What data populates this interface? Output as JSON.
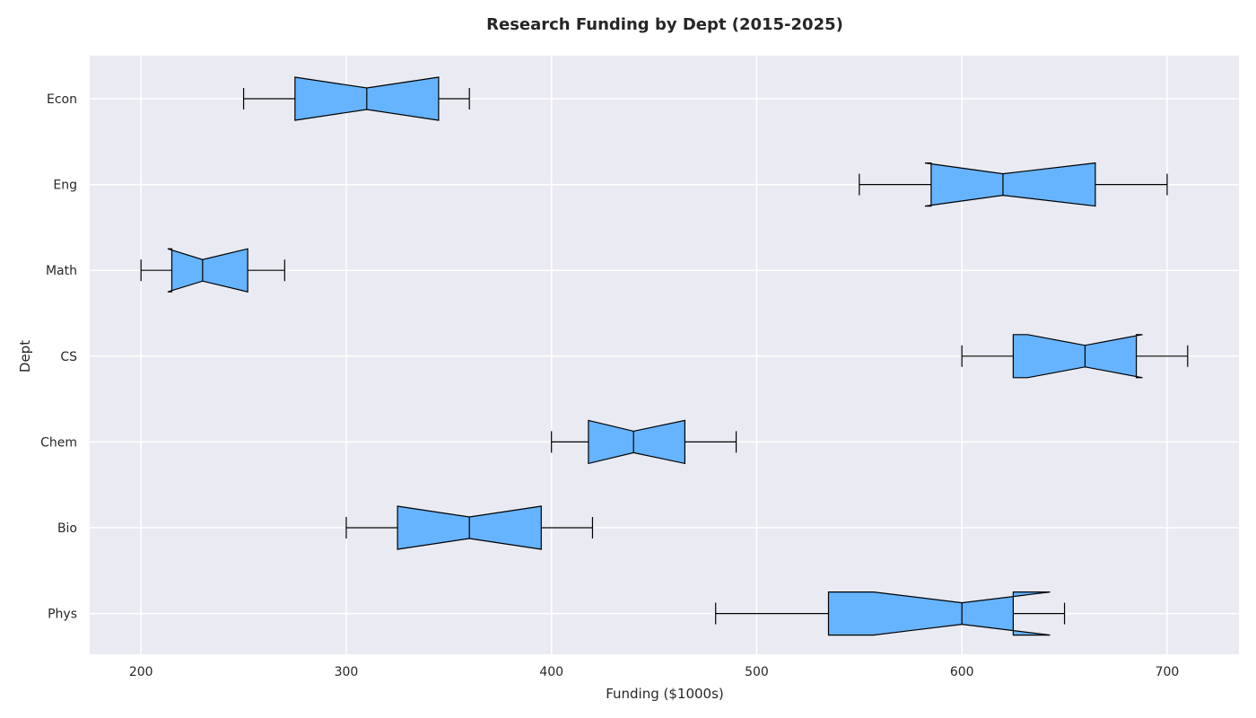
{
  "chart_data": {
    "type": "boxplot",
    "orientation": "horizontal",
    "notched": true,
    "title": "Research Funding by Dept (2015-2025)",
    "xlabel": "Funding ($1000s)",
    "ylabel": "Dept",
    "xlim": [
      175,
      735
    ],
    "xticks": [
      200,
      300,
      400,
      500,
      600,
      700
    ],
    "grid": true,
    "colors": {
      "box_fill": "#66b3ff",
      "box_edge": "#000000",
      "plot_bg": "#eaeaf2",
      "grid": "#ffffff"
    },
    "categories": [
      "Phys",
      "Bio",
      "Chem",
      "CS",
      "Math",
      "Eng",
      "Econ"
    ],
    "boxes": [
      {
        "label": "Phys",
        "whisker_low": 480,
        "q1": 535,
        "median": 600,
        "q3": 625,
        "whisker_high": 650,
        "notch_low": 557,
        "notch_high": 643
      },
      {
        "label": "Bio",
        "whisker_low": 300,
        "q1": 325,
        "median": 360,
        "q3": 395,
        "whisker_high": 420,
        "notch_low": 325,
        "notch_high": 395
      },
      {
        "label": "Chem",
        "whisker_low": 400,
        "q1": 418,
        "median": 440,
        "q3": 465,
        "whisker_high": 490,
        "notch_low": 418,
        "notch_high": 465
      },
      {
        "label": "CS",
        "whisker_low": 600,
        "q1": 625,
        "median": 660,
        "q3": 685,
        "whisker_high": 710,
        "notch_low": 632,
        "notch_high": 688
      },
      {
        "label": "Math",
        "whisker_low": 200,
        "q1": 215,
        "median": 230,
        "q3": 252,
        "whisker_high": 270,
        "notch_low": 213,
        "notch_high": 252
      },
      {
        "label": "Eng",
        "whisker_low": 550,
        "q1": 585,
        "median": 620,
        "q3": 665,
        "whisker_high": 700,
        "notch_low": 582,
        "notch_high": 665
      },
      {
        "label": "Econ",
        "whisker_low": 250,
        "q1": 275,
        "median": 310,
        "q3": 345,
        "whisker_high": 360,
        "notch_low": 275,
        "notch_high": 345
      }
    ]
  }
}
